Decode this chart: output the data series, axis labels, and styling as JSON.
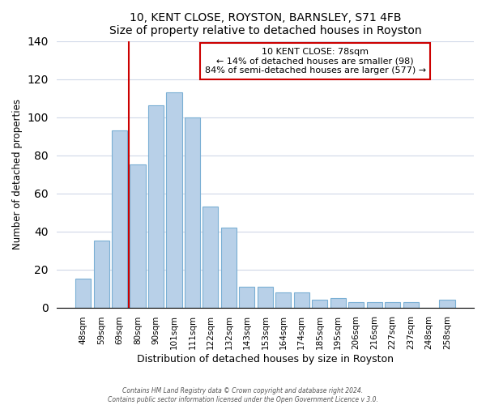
{
  "title": "10, KENT CLOSE, ROYSTON, BARNSLEY, S71 4FB",
  "subtitle": "Size of property relative to detached houses in Royston",
  "xlabel": "Distribution of detached houses by size in Royston",
  "ylabel": "Number of detached properties",
  "bar_labels": [
    "48sqm",
    "59sqm",
    "69sqm",
    "80sqm",
    "90sqm",
    "101sqm",
    "111sqm",
    "122sqm",
    "132sqm",
    "143sqm",
    "153sqm",
    "164sqm",
    "174sqm",
    "185sqm",
    "195sqm",
    "206sqm",
    "216sqm",
    "227sqm",
    "237sqm",
    "248sqm",
    "258sqm"
  ],
  "bar_values": [
    15,
    35,
    93,
    75,
    106,
    113,
    100,
    53,
    42,
    11,
    11,
    8,
    8,
    4,
    5,
    3,
    3,
    3,
    3,
    0,
    4
  ],
  "bar_color": "#b8d0e8",
  "bar_edge_color": "#7aafd4",
  "vline_x": 2.5,
  "vline_color": "#cc0000",
  "annotation_title": "10 KENT CLOSE: 78sqm",
  "annotation_line1": "← 14% of detached houses are smaller (98)",
  "annotation_line2": "84% of semi-detached houses are larger (577) →",
  "annotation_box_edge": "#cc0000",
  "ylim": [
    0,
    140
  ],
  "yticks": [
    0,
    20,
    40,
    60,
    80,
    100,
    120,
    140
  ],
  "footer1": "Contains HM Land Registry data © Crown copyright and database right 2024.",
  "footer2": "Contains public sector information licensed under the Open Government Licence v 3.0."
}
